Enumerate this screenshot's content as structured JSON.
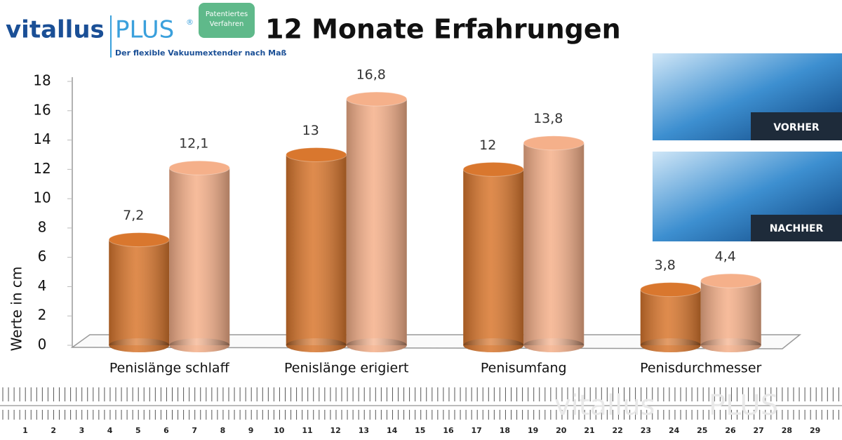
{
  "logo": {
    "brand": "vitallus",
    "brand2": "PLUS",
    "reg": "®",
    "tagline": "Der flexible Vakuumextender nach Maß",
    "badge": [
      "Patentiertes",
      "Verfahren"
    ]
  },
  "chart_data": {
    "type": "bar",
    "title": "12 Monate Erfahrungen",
    "y_label": "Werte in cm",
    "categories": [
      "Penislänge schlaff",
      "Penislänge erigiert",
      "Penisumfang",
      "Penisdurchmesser"
    ],
    "series": [
      {
        "color": "#d9772e",
        "values": [
          7.2,
          13,
          12,
          3.8
        ],
        "value_labels": [
          "7,2",
          "13",
          "12",
          "3,8"
        ]
      },
      {
        "color": "#f5b08a",
        "values": [
          12.1,
          16.8,
          13.8,
          4.4
        ],
        "value_labels": [
          "12,1",
          "16,8",
          "13,8",
          "4,4"
        ]
      }
    ],
    "ylim": [
      0,
      18
    ],
    "yticks": [
      0,
      2,
      4,
      6,
      8,
      10,
      12,
      14,
      16,
      18
    ]
  },
  "photos": [
    "VORHER",
    "NACHHER"
  ],
  "ruler": {
    "labels": [
      1,
      2,
      3,
      4,
      5,
      6,
      7,
      8,
      9,
      10,
      11,
      12,
      13,
      14,
      15,
      16,
      17,
      18,
      19,
      20,
      21,
      22,
      23,
      24,
      25,
      26,
      27,
      28,
      29
    ],
    "watermark": [
      "vitallus",
      "PLUS"
    ]
  }
}
